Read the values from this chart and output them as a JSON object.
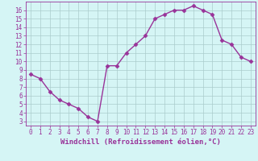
{
  "x": [
    0,
    1,
    2,
    3,
    4,
    5,
    6,
    7,
    8,
    9,
    10,
    11,
    12,
    13,
    14,
    15,
    16,
    17,
    18,
    19,
    20,
    21,
    22,
    23
  ],
  "y": [
    8.5,
    8.0,
    6.5,
    5.5,
    5.0,
    4.5,
    3.5,
    3.0,
    9.5,
    9.5,
    11.0,
    12.0,
    13.0,
    15.0,
    15.5,
    16.0,
    16.0,
    16.5,
    16.0,
    15.5,
    12.5,
    12.0,
    10.5,
    10.0
  ],
  "line_color": "#993399",
  "marker": "D",
  "markersize": 2.5,
  "linewidth": 1.0,
  "background_color": "#d5f5f5",
  "grid_color": "#aacccc",
  "tick_color": "#993399",
  "label_color": "#993399",
  "xlabel": "Windchill (Refroidissement éolien,°C)",
  "xlabel_fontsize": 6.5,
  "tick_fontsize": 5.5,
  "ylim": [
    2.5,
    17.0
  ],
  "xlim": [
    -0.5,
    23.5
  ],
  "yticks": [
    3,
    4,
    5,
    6,
    7,
    8,
    9,
    10,
    11,
    12,
    13,
    14,
    15,
    16
  ],
  "xticks": [
    0,
    1,
    2,
    3,
    4,
    5,
    6,
    7,
    8,
    9,
    10,
    11,
    12,
    13,
    14,
    15,
    16,
    17,
    18,
    19,
    20,
    21,
    22,
    23
  ]
}
